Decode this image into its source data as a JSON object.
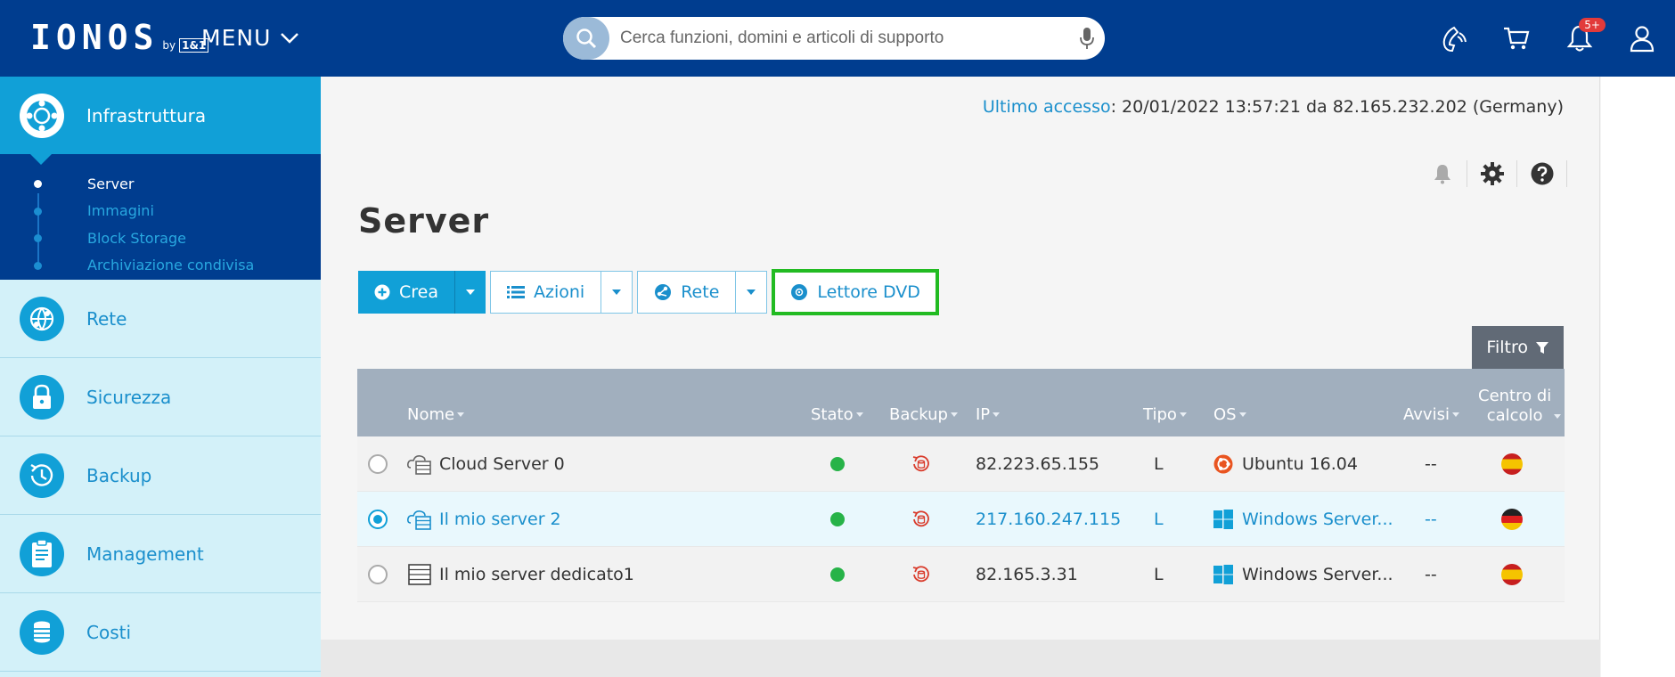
{
  "header": {
    "logo": "IONOS",
    "logo_by": "by",
    "logo_partner": "1&1",
    "menu_label": "MENU",
    "search_placeholder": "Cerca funzioni, domini e articoli di supporto",
    "notification_badge": "5+",
    "icons": [
      "phone-icon",
      "cart-icon",
      "bell-icon",
      "user-icon"
    ]
  },
  "sidebar": {
    "active_section": "Infrastruttura",
    "subitems": [
      {
        "label": "Server",
        "active": true
      },
      {
        "label": "Immagini",
        "active": false
      },
      {
        "label": "Block Storage",
        "active": false
      },
      {
        "label": "Archiviazione condivisa",
        "active": false
      }
    ],
    "items": [
      {
        "label": "Rete",
        "icon": "network-icon"
      },
      {
        "label": "Sicurezza",
        "icon": "lock-icon"
      },
      {
        "label": "Backup",
        "icon": "backup-icon"
      },
      {
        "label": "Management",
        "icon": "clipboard-icon"
      },
      {
        "label": "Costi",
        "icon": "coins-icon"
      }
    ]
  },
  "main": {
    "last_access_label": "Ultimo accesso",
    "last_access_value": ": 20/01/2022 13:57:21 da 82.165.232.202 (Germany)",
    "title": "Server",
    "toolbar": {
      "create": "Crea",
      "actions": "Azioni",
      "network": "Rete",
      "dvd": "Lettore DVD"
    },
    "filter": "Filtro",
    "table": {
      "headers": {
        "name": "Nome",
        "status": "Stato",
        "backup": "Backup",
        "ip": "IP",
        "type": "Tipo",
        "os": "OS",
        "alerts": "Avvisi",
        "datacenter_line1": "Centro di",
        "datacenter_line2": "calcolo"
      },
      "rows": [
        {
          "name": "Cloud Server 0",
          "status": "online",
          "ip": "82.223.65.155",
          "type": "L",
          "os": "Ubuntu 16.04",
          "os_icon": "ubuntu-icon",
          "alerts": "--",
          "flag": "es",
          "selected": false
        },
        {
          "name": "Il mio server 2",
          "status": "online",
          "ip": "217.160.247.115",
          "type": "L",
          "os": "Windows Server...",
          "os_icon": "windows-icon",
          "alerts": "--",
          "flag": "de",
          "selected": true
        },
        {
          "name": "Il mio server dedicato1",
          "status": "online",
          "ip": "82.165.3.31",
          "type": "L",
          "os": "Windows Server...",
          "os_icon": "windows-icon",
          "alerts": "--",
          "flag": "es",
          "selected": false
        }
      ]
    }
  },
  "colors": {
    "header_bg": "#003d8f",
    "accent": "#11a0d7",
    "sidebar_bg": "#d3f1f9",
    "status_online": "#27b348",
    "highlight": "#22bb22",
    "table_header": "#a1afbe"
  }
}
